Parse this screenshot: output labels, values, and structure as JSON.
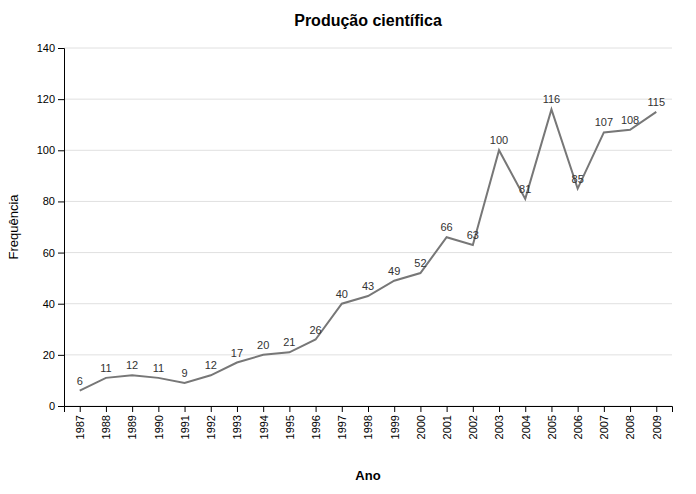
{
  "chart_data": {
    "type": "line",
    "title": "Produção científica",
    "x_label": "Ano",
    "y_label": "Frequência",
    "x": [
      1987,
      1988,
      1989,
      1990,
      1991,
      1992,
      1993,
      1994,
      1995,
      1996,
      1997,
      1998,
      1999,
      2000,
      2001,
      2002,
      2003,
      2004,
      2005,
      2006,
      2007,
      2008,
      2009
    ],
    "values": [
      6,
      11,
      12,
      11,
      9,
      12,
      17,
      20,
      21,
      26,
      40,
      43,
      49,
      52,
      66,
      63,
      100,
      81,
      116,
      85,
      107,
      108,
      115
    ],
    "color": "#777777",
    "xlim": [
      1986.4,
      2009.6
    ],
    "xticks": [
      1987,
      1988,
      1989,
      1990,
      1991,
      1992,
      1993,
      1994,
      1995,
      1996,
      1997,
      1998,
      1999,
      2000,
      2001,
      2002,
      2003,
      2004,
      2005,
      2006,
      2007,
      2008,
      2009
    ],
    "ylim": [
      0,
      140
    ],
    "yticks": [
      0,
      20,
      40,
      60,
      80,
      100,
      120,
      140
    ],
    "grid": "y",
    "data_labels": true
  }
}
